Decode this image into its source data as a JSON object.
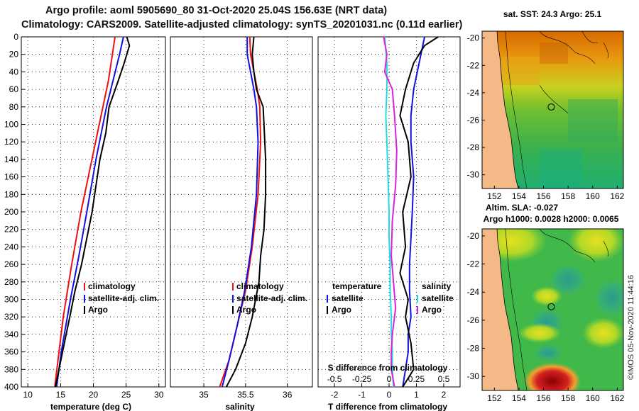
{
  "header": {
    "line1": "Argo profile: aoml 5905690_80 31-Oct-2020 25.04S 156.63E (NRT data)",
    "line2": "Climatology: CARS2009. Satellite-adjusted climatology: synTS_20201031.nc (0.11d earlier)"
  },
  "colors": {
    "red": "#ee1111",
    "blue": "#1111dd",
    "black": "#000000",
    "cyan": "#22dddd",
    "magenta": "#dd22dd",
    "land": "#f5b988"
  },
  "chart_data": [
    {
      "type": "line",
      "id": "temperature",
      "title": "",
      "xlabel": "temperature (deg C)",
      "ylabel": "",
      "xlim": [
        9,
        31
      ],
      "ylim": [
        400,
        0
      ],
      "xticks": [
        10,
        15,
        20,
        25,
        30
      ],
      "yticks": [
        0,
        20,
        40,
        60,
        80,
        100,
        120,
        140,
        160,
        180,
        200,
        220,
        240,
        260,
        280,
        300,
        320,
        340,
        360,
        380,
        400
      ],
      "legend": [
        "climatology",
        "satellite-adj. clim.",
        "Argo"
      ],
      "series": [
        {
          "name": "climatology",
          "color": "red",
          "x": [
            23.3,
            22.3,
            20.9,
            19.5,
            18.1,
            16.7,
            15.4,
            14.1
          ],
          "y": [
            0,
            50,
            100,
            150,
            200,
            260,
            320,
            400
          ]
        },
        {
          "name": "satellite-adj. clim.",
          "color": "blue",
          "x": [
            24.6,
            24.0,
            22.0,
            20.4,
            19.0,
            17.8,
            16.5,
            15.1,
            14.4
          ],
          "y": [
            0,
            20,
            80,
            140,
            200,
            250,
            300,
            360,
            400
          ]
        },
        {
          "name": "Argo",
          "color": "black",
          "x": [
            25.1,
            25.5,
            24.7,
            23.8,
            22.4,
            21.9,
            21.0,
            20.6,
            19.8,
            19.0,
            18.2,
            17.2,
            16.4,
            15.3,
            14.2
          ],
          "y": [
            0,
            10,
            30,
            50,
            80,
            110,
            140,
            160,
            200,
            230,
            260,
            290,
            320,
            360,
            400
          ]
        }
      ]
    },
    {
      "type": "line",
      "id": "salinity",
      "title": "",
      "xlabel": "salinity",
      "ylabel": "",
      "xlim": [
        34.6,
        36.3
      ],
      "ylim": [
        400,
        0
      ],
      "xticks": [
        35,
        35.5,
        36
      ],
      "legend": [
        "climatology",
        "satellite-adj. clim.",
        "Argo"
      ],
      "series": [
        {
          "name": "climatology",
          "color": "red",
          "x": [
            35.55,
            35.56,
            35.6,
            35.64,
            35.67,
            35.68,
            35.65,
            35.58,
            35.5,
            35.4,
            35.3,
            35.19
          ],
          "y": [
            0,
            20,
            40,
            60,
            80,
            120,
            180,
            240,
            290,
            330,
            370,
            400
          ]
        },
        {
          "name": "satellite-adj. clim.",
          "color": "blue",
          "x": [
            35.52,
            35.52,
            35.56,
            35.6,
            35.63,
            35.65,
            35.63,
            35.57,
            35.49,
            35.4,
            35.3,
            35.22
          ],
          "y": [
            0,
            20,
            40,
            60,
            80,
            120,
            180,
            240,
            290,
            330,
            370,
            400
          ]
        },
        {
          "name": "Argo",
          "color": "black",
          "x": [
            35.6,
            35.58,
            35.6,
            35.63,
            35.71,
            35.72,
            35.74,
            35.74,
            35.72,
            35.68,
            35.66,
            35.58,
            35.5,
            35.38,
            35.27
          ],
          "y": [
            0,
            20,
            40,
            60,
            80,
            100,
            140,
            180,
            220,
            250,
            280,
            320,
            350,
            380,
            400
          ]
        }
      ]
    },
    {
      "type": "line",
      "id": "difference",
      "title": "",
      "xlabel": "T difference from climatology",
      "x2label": "S difference from climatology",
      "ylabel": "",
      "xlim": [
        -2.6,
        2.6
      ],
      "ylim": [
        400,
        0
      ],
      "xticks": [
        -2,
        -1,
        0,
        1,
        2
      ],
      "x2lim": [
        -0.65,
        0.65
      ],
      "x2ticks": [
        -0.5,
        -0.25,
        0,
        0.25,
        0.5
      ],
      "x2ticklabels": [
        "-0.5",
        "-0.25",
        "0",
        "0.25",
        "0.5"
      ],
      "legend_left_title": "temperature",
      "legend_right_title": "salinity",
      "legend_left": [
        "satellite",
        "Argo"
      ],
      "legend_right": [
        "satellite",
        "Argo"
      ],
      "series": [
        {
          "name": "T satellite",
          "color": "blue",
          "axis": "T",
          "x": [
            1.3,
            1.1,
            0.9,
            0.8,
            0.8,
            0.9,
            0.85,
            0.8,
            0.75,
            0.75,
            0.8,
            0.7,
            0.7,
            0.6,
            0.5
          ],
          "y": [
            0,
            30,
            60,
            90,
            120,
            160,
            200,
            230,
            260,
            290,
            320,
            340,
            360,
            380,
            400
          ]
        },
        {
          "name": "T Argo",
          "color": "black",
          "axis": "T",
          "x": [
            1.8,
            1.3,
            0.9,
            0.6,
            0.4,
            0.7,
            0.8,
            0.5,
            0.6,
            0.4,
            0.7,
            0.6,
            0.8,
            0.9,
            0.5
          ],
          "y": [
            0,
            10,
            30,
            60,
            90,
            120,
            160,
            200,
            240,
            270,
            300,
            320,
            350,
            380,
            400
          ]
        },
        {
          "name": "S satellite",
          "color": "cyan",
          "axis": "S",
          "x": [
            -0.04,
            -0.02,
            -0.02,
            -0.03,
            -0.02,
            -0.01,
            0.0,
            0.0,
            0.01,
            0.01,
            0.02,
            0.02,
            0.03,
            0.03,
            0.04
          ],
          "y": [
            0,
            30,
            60,
            90,
            120,
            160,
            200,
            230,
            260,
            290,
            320,
            340,
            360,
            380,
            400
          ]
        },
        {
          "name": "S Argo",
          "color": "magenta",
          "axis": "S",
          "x": [
            -0.05,
            -0.02,
            -0.04,
            0.03,
            0.05,
            0.07,
            0.06,
            0.03,
            0.02,
            0.04,
            0.06,
            0.03,
            0.02,
            0.02,
            0.05
          ],
          "y": [
            0,
            20,
            40,
            60,
            90,
            130,
            170,
            210,
            250,
            280,
            310,
            340,
            360,
            380,
            400
          ]
        }
      ]
    },
    {
      "type": "heatmap",
      "id": "sst-map",
      "title": "sat. SST: 24.3 Argo: 25.1",
      "xlim": [
        151,
        162.5
      ],
      "ylim": [
        -31,
        -19.5
      ],
      "xticks": [
        152,
        154,
        156,
        158,
        160,
        162
      ],
      "yticks": [
        -20,
        -22,
        -24,
        -26,
        -28,
        -30
      ],
      "marker": {
        "lon": 156.63,
        "lat": -25.04
      }
    },
    {
      "type": "heatmap",
      "id": "sla-map",
      "title": "Altim. SLA: -0.027",
      "subtitle": "Argo h1000: 0.0028 h2000: 0.0065",
      "xlim": [
        151,
        162.5
      ],
      "ylim": [
        -31,
        -19.5
      ],
      "xticks": [
        152,
        154,
        156,
        158,
        160,
        162
      ],
      "yticks": [
        -20,
        -22,
        -24,
        -26,
        -28,
        -30
      ],
      "marker": {
        "lon": 156.63,
        "lat": -25.04
      }
    }
  ],
  "credit": "©IMOS 05-Nov-2020 11:44:16"
}
